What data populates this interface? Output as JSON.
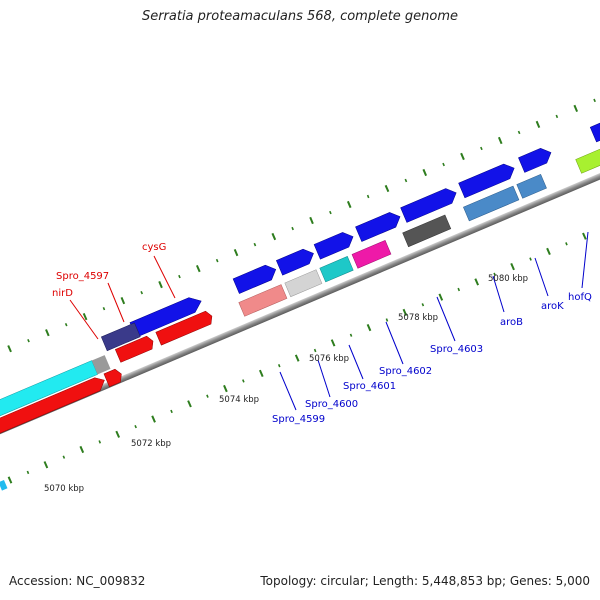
{
  "title": "Serratia proteamaculans 568, complete genome",
  "footer": {
    "accession": "Accession: NC_009832",
    "summary": "Topology: circular; Length: 5,448,853 bp; Genes: 5,000"
  },
  "colors": {
    "backbone": "#9a9a9a",
    "tick": "#2e7d1e",
    "red_label": "#dd0000",
    "blue_label": "#0000cc"
  },
  "scale_labels": [
    "5070 kbp",
    "5072 kbp",
    "5074 kbp",
    "5076 kbp",
    "5078 kbp",
    "5080 kbp"
  ],
  "gene_labels": [
    {
      "text": "cysG",
      "color": "red"
    },
    {
      "text": "Spro_4597",
      "color": "red"
    },
    {
      "text": "nirD",
      "color": "red"
    },
    {
      "text": "Spro_4599",
      "color": "blue"
    },
    {
      "text": "Spro_4600",
      "color": "blue"
    },
    {
      "text": "Spro_4601",
      "color": "blue"
    },
    {
      "text": "Spro_4602",
      "color": "blue"
    },
    {
      "text": "Spro_4603",
      "color": "blue"
    },
    {
      "text": "aroB",
      "color": "blue"
    },
    {
      "text": "aroK",
      "color": "blue"
    },
    {
      "text": "hofQ",
      "color": "blue"
    }
  ]
}
